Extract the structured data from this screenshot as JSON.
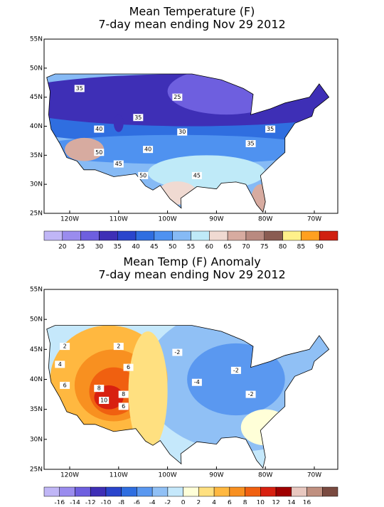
{
  "maps": [
    {
      "title": [
        "Mean Temperature (F)",
        "7-day mean ending Nov 29 2012"
      ],
      "lat_labels": [
        "55N",
        "50N",
        "45N",
        "40N",
        "35N",
        "30N",
        "25N"
      ],
      "lon_labels": [
        "120W",
        "110W",
        "100W",
        "90W",
        "80W",
        "70W"
      ],
      "contour_labels": [
        "35",
        "25",
        "35",
        "30",
        "40",
        "40",
        "35",
        "50",
        "45",
        "50",
        "45",
        "35"
      ],
      "colorbar": {
        "colors": [
          "#c0b6f6",
          "#9a8cee",
          "#6e5fdf",
          "#3e2fb6",
          "#2a45cc",
          "#2f6ee0",
          "#4f92f0",
          "#86baf5",
          "#bfeaf8",
          "#f0dad2",
          "#d7aba0",
          "#b98a80",
          "#8a5c52",
          "#fff08a",
          "#ffa020",
          "#d02010"
        ],
        "labels": [
          20,
          25,
          30,
          35,
          40,
          45,
          50,
          55,
          60,
          65,
          70,
          75,
          80,
          85,
          90
        ]
      }
    },
    {
      "title": [
        "Mean Temp (F) Anomaly",
        "7-day mean ending Nov 29 2012"
      ],
      "lat_labels": [
        "55N",
        "50N",
        "45N",
        "40N",
        "35N",
        "30N",
        "25N"
      ],
      "lon_labels": [
        "120W",
        "110W",
        "100W",
        "90W",
        "80W",
        "70W"
      ],
      "contour_labels": [
        "2",
        "2",
        "4",
        "6",
        "8",
        "6",
        "10",
        "8",
        "6",
        "-2",
        "-4",
        "-2",
        "-2"
      ],
      "colorbar": {
        "colors": [
          "#c0b6f6",
          "#9a8cee",
          "#6e5fdf",
          "#3e2fb6",
          "#2a45cc",
          "#2f6ee0",
          "#5a98f0",
          "#90c0f5",
          "#c5e8fb",
          "#ffffd8",
          "#ffe080",
          "#ffb840",
          "#f89020",
          "#f06010",
          "#d82010",
          "#a00000",
          "#e8c8c0",
          "#c09080",
          "#7a4a40"
        ],
        "labels": [
          -16,
          -14,
          -12,
          -10,
          -8,
          -6,
          -4,
          -2,
          0,
          2,
          4,
          6,
          8,
          10,
          12,
          14,
          16
        ]
      }
    }
  ]
}
